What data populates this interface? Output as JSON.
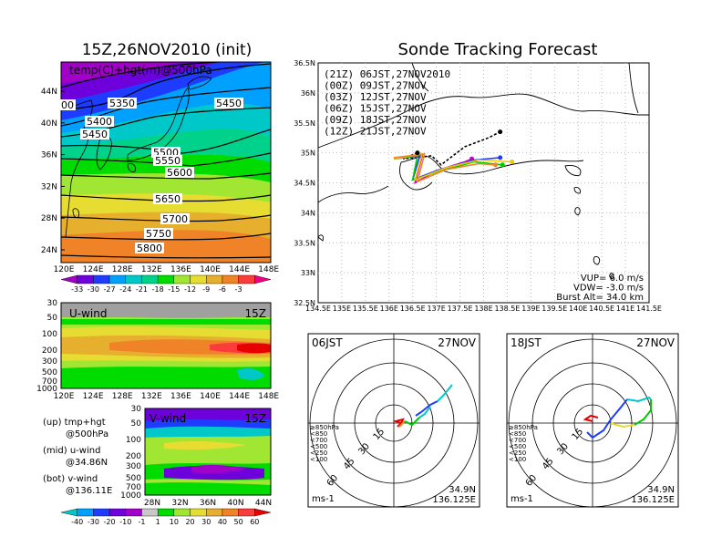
{
  "left_title": "15Z,26NOV2010 (init)",
  "main_title": "Sonde Tracking Forecast",
  "map_left": {
    "label": "temp(C)+hgt(m)@500hPa",
    "contour_labels": [
      "5350",
      "5450",
      "5400",
      "5450",
      "5500",
      "5550",
      "5600",
      "5650",
      "5700",
      "5750",
      "5800",
      "00"
    ],
    "lat_ticks": [
      "44N",
      "40N",
      "36N",
      "32N",
      "28N",
      "24N"
    ],
    "lon_ticks": [
      "120E",
      "124E",
      "128E",
      "132E",
      "136E",
      "140E",
      "144E",
      "148E"
    ],
    "colorbar": [
      "-33",
      "-30",
      "-27",
      "-24",
      "-21",
      "-18",
      "-15",
      "-12",
      "-9",
      "-6",
      "-3"
    ],
    "colorbar_colors": [
      "#a000c8",
      "#6e00dc",
      "#1e3cff",
      "#00a0ff",
      "#00c8c8",
      "#00d28c",
      "#00dc00",
      "#a0e632",
      "#e6dc32",
      "#e6af2d",
      "#f08228",
      "#fa3c3c",
      "#f00082"
    ]
  },
  "uwind": {
    "label": "U-wind",
    "time": "15Z",
    "p_ticks": [
      "30",
      "50",
      "100",
      "200",
      "300",
      "500",
      "700",
      "1000"
    ],
    "lon_ticks": [
      "120E",
      "124E",
      "128E",
      "132E",
      "136E",
      "140E",
      "144E",
      "148E"
    ]
  },
  "vwind": {
    "label": "V-wind",
    "time": "15Z",
    "p_ticks": [
      "30",
      "50",
      "100",
      "200",
      "300",
      "500",
      "700",
      "1000"
    ],
    "lat_ticks": [
      "28N",
      "32N",
      "36N",
      "40N",
      "44N"
    ]
  },
  "notes": [
    {
      "a": "(up) tmp+hgt",
      "b": "@500hPa"
    },
    {
      "a": "(mid) u-wind",
      "b": "@34.86N"
    },
    {
      "a": "(bot) v-wind",
      "b": "@136.11E"
    }
  ],
  "wind_colorbar": [
    "-40",
    "-30",
    "-20",
    "-10",
    "-1",
    "1",
    "10",
    "20",
    "30",
    "40",
    "50",
    "60"
  ],
  "wind_colorbar_colors": [
    "#00c8c8",
    "#00a0ff",
    "#1e3cff",
    "#6e00dc",
    "#a000c8",
    "#c8c8c8",
    "#00dc00",
    "#a0e632",
    "#e6dc32",
    "#e6af2d",
    "#f08228",
    "#fa3c3c",
    "#e60000"
  ],
  "track_map": {
    "lat_ticks": [
      "36.5N",
      "36N",
      "35.5N",
      "35N",
      "34.5N",
      "34N",
      "33.5N",
      "33N",
      "32.5N"
    ],
    "lon_ticks": [
      "134.5E",
      "135E",
      "135.5E",
      "136E",
      "136.5E",
      "137E",
      "137.5E",
      "138E",
      "138.5E",
      "139E",
      "139.5E",
      "140E",
      "140.5E",
      "141E",
      "141.5E"
    ],
    "legend": [
      {
        "label": "(21Z)  06JST,27NOV2010",
        "color": "#000000"
      },
      {
        "label": "(00Z)  09JST,27NOV",
        "color": "#c800c8"
      },
      {
        "label": "(03Z)  12JST,27NOV",
        "color": "#1e3cff"
      },
      {
        "label": "(06Z)  15JST,27NOV",
        "color": "#00c800"
      },
      {
        "label": "(09Z)  18JST,27NOV",
        "color": "#f0c800"
      },
      {
        "label": "(12Z)  21JST,27NOV",
        "color": "#f08228"
      }
    ],
    "info": [
      "VUP=  6.0  m/s",
      "VDW= -3.0  m/s",
      "Burst Alt=  34.0  km"
    ]
  },
  "hodo1": {
    "time": "06JST",
    "date": "27NOV",
    "rings": [
      "15",
      "30",
      "45",
      "60"
    ],
    "unit": "ms-1",
    "lat": "34.9N",
    "lon": "136.125E",
    "levels": [
      {
        "label": "≥850hPa",
        "color": "#e60000"
      },
      {
        "label": "<850",
        "color": "#f08228"
      },
      {
        "label": "<700",
        "color": "#e6dc32"
      },
      {
        "label": "<500",
        "color": "#00c800"
      },
      {
        "label": "<250",
        "color": "#00c8c8"
      },
      {
        "label": "<100",
        "color": "#1e3cff"
      }
    ]
  },
  "hodo2": {
    "time": "18JST",
    "date": "27NOV",
    "rings": [
      "15",
      "30",
      "45",
      "60"
    ],
    "unit": "ms-1",
    "lat": "34.9N",
    "lon": "136.125E"
  }
}
